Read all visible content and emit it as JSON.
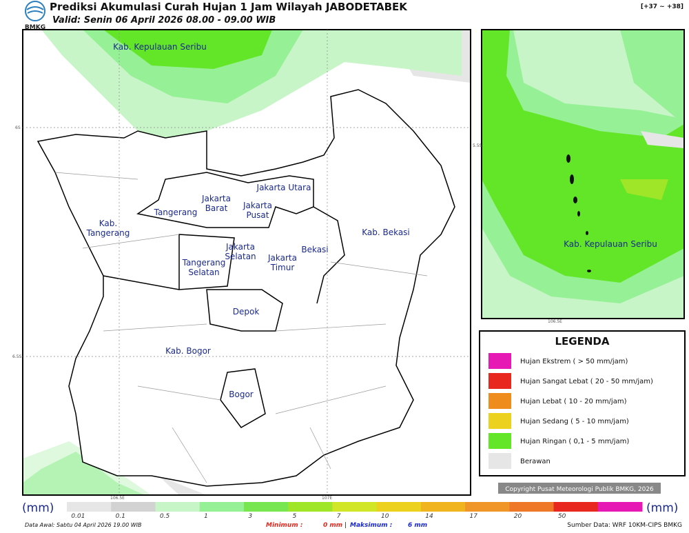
{
  "header": {
    "logo": "BMKG",
    "title": "Prediksi Akumulasi Curah Hujan 1 Jam Wilayah JABODETABEK",
    "valid": "Valid: Senin 06 April 2026 08.00 - 09.00 WIB",
    "range": "[+37 ~ +38]"
  },
  "map": {
    "labels": [
      "Kab. Kepulauan Seribu",
      "Jakarta Utara",
      "Jakarta\nBarat",
      "Jakarta\nPusat",
      "Tangerang",
      "Kab.\nTangerang",
      "Jakarta\nSelatan",
      "Jakarta\nTimur",
      "Bekasi",
      "Kab. Bekasi",
      "Tangerang\nSelatan",
      "Depok",
      "Kab. Bogor",
      "Bogor"
    ],
    "coords": [
      "6S",
      "6.5S",
      "106.5E",
      "107E"
    ]
  },
  "inset": {
    "label": "Kab. Kepulauan Seribu",
    "coords": [
      "5.5S",
      "106.5E"
    ]
  },
  "legend": {
    "title": "LEGENDA",
    "entries": [
      {
        "color": "#e619b5",
        "label": "Hujan Ekstrem ( > 50 mm/jam)"
      },
      {
        "color": "#e8281e",
        "label": "Hujan Sangat Lebat ( 20 - 50 mm/jam)"
      },
      {
        "color": "#ee8c1e",
        "label": "Hujan Lebat ( 10 - 20 mm/jam)"
      },
      {
        "color": "#ecd21e",
        "label": "Hujan Sedang ( 5 - 10 mm/jam)"
      },
      {
        "color": "#64e628",
        "label": "Hujan Ringan ( 0,1 - 5 mm/jam)"
      },
      {
        "color": "#e6e6e6",
        "label": "Berawan"
      }
    ]
  },
  "copyright": "Copyright Pusat Meteorologi Publik BMKG, 2026",
  "colorbar": {
    "unit": "(mm)",
    "colors": [
      "#e6e6e6",
      "#d2d2d2",
      "#c8f5c8",
      "#96f096",
      "#78e650",
      "#a0e628",
      "#d2e628",
      "#ecd21e",
      "#f0b41e",
      "#f09628",
      "#ee7828",
      "#e8281e",
      "#e619b5"
    ],
    "labels": [
      "0.01",
      "0.1",
      "0.5",
      "1",
      "3",
      "5",
      "7",
      "10",
      "14",
      "17",
      "20",
      "50"
    ]
  },
  "footer": {
    "data_awal": "Data Awal: Sabtu 04 April 2026 19.00 WIB",
    "min_label": "Minimum :",
    "min_value": "0 mm",
    "separator": "|",
    "max_label": "Maksimum :",
    "max_value": "6 mm",
    "source": "Sumber Data: WRF 10KM-CIPS BMKG"
  }
}
